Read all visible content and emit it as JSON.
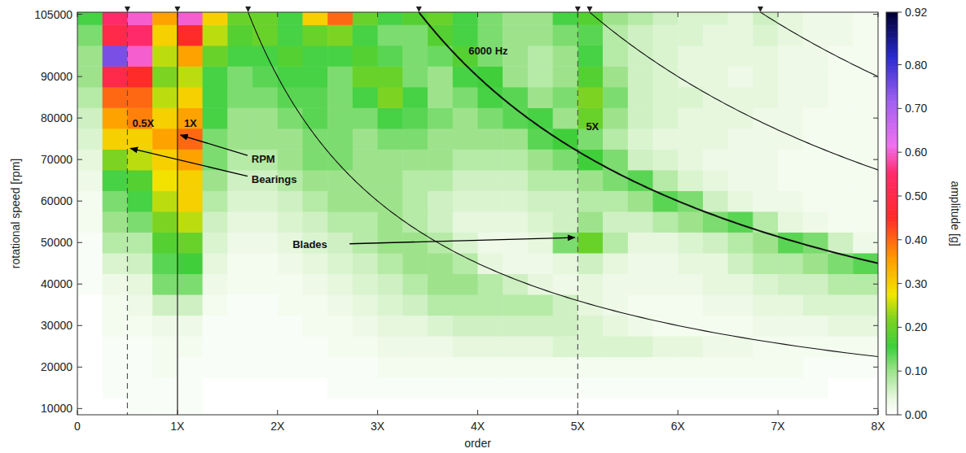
{
  "chart_data": {
    "type": "heatmap",
    "x_label": "order",
    "y_label": "rotational speed [rpm]",
    "xlim": [
      0,
      8
    ],
    "ylim": [
      8500,
      105500
    ],
    "xticks": [
      0,
      {
        "value": 1,
        "label": "1X"
      },
      {
        "value": 2,
        "label": "2X"
      },
      {
        "value": 3,
        "label": "3X"
      },
      {
        "value": 4,
        "label": "4X"
      },
      {
        "value": 5,
        "label": "5X"
      },
      {
        "value": 6,
        "label": "6X"
      },
      {
        "value": 7,
        "label": "7X"
      },
      {
        "value": 8,
        "label": "8X"
      }
    ],
    "yticks": [
      10000,
      20000,
      30000,
      40000,
      50000,
      60000,
      70000,
      80000,
      90000,
      105000
    ],
    "grid": false,
    "x_bins": [
      0,
      0.25,
      0.5,
      0.75,
      1,
      1.25,
      1.5,
      1.75,
      2,
      2.25,
      2.5,
      2.75,
      3,
      3.25,
      3.5,
      3.75,
      4,
      4.25,
      4.5,
      4.75,
      5,
      5.25,
      5.5,
      5.75,
      6,
      6.25,
      6.5,
      6.75,
      7,
      7.25,
      7.5,
      7.75,
      8
    ],
    "y_bins": [
      7500,
      12500,
      17500,
      22500,
      27500,
      32500,
      37500,
      42500,
      47500,
      52500,
      57500,
      62500,
      67500,
      72500,
      77500,
      82500,
      87500,
      92500,
      97500,
      102500,
      107500
    ],
    "cells": [
      [
        0,
        0,
        0.01,
        0.01,
        0.01,
        0,
        0,
        0,
        0,
        0,
        0,
        0,
        0,
        0,
        0,
        0,
        0,
        0,
        0,
        0,
        0,
        0,
        0,
        0,
        0,
        0,
        0,
        0,
        0,
        0,
        0,
        0
      ],
      [
        0,
        0.01,
        0.01,
        0.01,
        0.01,
        0,
        0,
        0,
        0,
        0,
        0.01,
        0.01,
        0.01,
        0.01,
        0.01,
        0.01,
        0.01,
        0.01,
        0.01,
        0.01,
        0.01,
        0.01,
        0.01,
        0.01,
        0.01,
        0.01,
        0.01,
        0.01,
        0.01,
        0.01,
        0,
        0
      ],
      [
        0,
        0.01,
        0.01,
        0.02,
        0.01,
        0.01,
        0.01,
        0.01,
        0.01,
        0.01,
        0.01,
        0.01,
        0.02,
        0.02,
        0.02,
        0.02,
        0.02,
        0.02,
        0.02,
        0.02,
        0.02,
        0.02,
        0.02,
        0.02,
        0.02,
        0.02,
        0.02,
        0.02,
        0.02,
        0.01,
        0.01,
        0.01
      ],
      [
        0,
        0.01,
        0.01,
        0.02,
        0.02,
        0.01,
        0.01,
        0.01,
        0.01,
        0.01,
        0.02,
        0.02,
        0.03,
        0.03,
        0.03,
        0.04,
        0.04,
        0.04,
        0.04,
        0.05,
        0.05,
        0.05,
        0.05,
        0.04,
        0.04,
        0.03,
        0.03,
        0.02,
        0.02,
        0.02,
        0.02,
        0.02
      ],
      [
        0,
        0.02,
        0.02,
        0.03,
        0.03,
        0.01,
        0.01,
        0.01,
        0.01,
        0.02,
        0.02,
        0.03,
        0.04,
        0.04,
        0.05,
        0.06,
        0.06,
        0.06,
        0.06,
        0.06,
        0.05,
        0.04,
        0.03,
        0.02,
        0.02,
        0.02,
        0.02,
        0.03,
        0.03,
        0.03,
        0.04,
        0.04
      ],
      [
        0,
        0.02,
        0.03,
        0.06,
        0.06,
        0.02,
        0.01,
        0.01,
        0.02,
        0.02,
        0.03,
        0.04,
        0.05,
        0.06,
        0.08,
        0.08,
        0.08,
        0.08,
        0.08,
        0.06,
        0.04,
        0.03,
        0.02,
        0.02,
        0.02,
        0.03,
        0.03,
        0.04,
        0.04,
        0.05,
        0.05,
        0.05
      ],
      [
        0.01,
        0.03,
        0.04,
        0.12,
        0.12,
        0.03,
        0.02,
        0.02,
        0.02,
        0.03,
        0.04,
        0.05,
        0.06,
        0.08,
        0.1,
        0.1,
        0.08,
        0.06,
        0.04,
        0.03,
        0.04,
        0.03,
        0.03,
        0.03,
        0.03,
        0.04,
        0.04,
        0.05,
        0.06,
        0.06,
        0.08,
        0.08
      ],
      [
        0.01,
        0.05,
        0.06,
        0.14,
        0.16,
        0.04,
        0.02,
        0.02,
        0.03,
        0.04,
        0.05,
        0.06,
        0.08,
        0.1,
        0.1,
        0.08,
        0.04,
        0.03,
        0.03,
        0.04,
        0.06,
        0.04,
        0.03,
        0.03,
        0.04,
        0.04,
        0.06,
        0.08,
        0.08,
        0.1,
        0.12,
        0.14
      ],
      [
        0.01,
        0.08,
        0.08,
        0.18,
        0.2,
        0.05,
        0.03,
        0.03,
        0.04,
        0.05,
        0.06,
        0.08,
        0.1,
        0.1,
        0.08,
        0.05,
        0.03,
        0.03,
        0.04,
        0.12,
        0.2,
        0.08,
        0.04,
        0.04,
        0.05,
        0.06,
        0.08,
        0.1,
        0.14,
        0.12,
        0.06,
        0.03
      ],
      [
        0.02,
        0.1,
        0.12,
        0.22,
        0.25,
        0.06,
        0.04,
        0.04,
        0.05,
        0.06,
        0.08,
        0.08,
        0.1,
        0.08,
        0.06,
        0.04,
        0.04,
        0.04,
        0.05,
        0.06,
        0.1,
        0.06,
        0.06,
        0.08,
        0.1,
        0.12,
        0.14,
        0.08,
        0.04,
        0.03,
        0.02,
        0.02
      ],
      [
        0.02,
        0.12,
        0.15,
        0.25,
        0.3,
        0.08,
        0.05,
        0.05,
        0.06,
        0.08,
        0.1,
        0.1,
        0.1,
        0.08,
        0.06,
        0.05,
        0.05,
        0.05,
        0.06,
        0.06,
        0.08,
        0.08,
        0.1,
        0.14,
        0.12,
        0.06,
        0.04,
        0.03,
        0.03,
        0.02,
        0.02,
        0.02
      ],
      [
        0.03,
        0.15,
        0.18,
        0.28,
        0.3,
        0.1,
        0.06,
        0.06,
        0.08,
        0.1,
        0.1,
        0.1,
        0.1,
        0.08,
        0.08,
        0.06,
        0.06,
        0.06,
        0.08,
        0.08,
        0.1,
        0.12,
        0.14,
        0.08,
        0.05,
        0.04,
        0.03,
        0.03,
        0.02,
        0.02,
        0.02,
        0.02
      ],
      [
        0.04,
        0.22,
        0.25,
        0.3,
        0.35,
        0.12,
        0.08,
        0.08,
        0.1,
        0.12,
        0.12,
        0.1,
        0.1,
        0.1,
        0.1,
        0.08,
        0.08,
        0.08,
        0.1,
        0.12,
        0.16,
        0.12,
        0.06,
        0.05,
        0.04,
        0.03,
        0.03,
        0.03,
        0.02,
        0.02,
        0.02,
        0.02
      ],
      [
        0.05,
        0.3,
        0.3,
        0.35,
        0.4,
        0.12,
        0.1,
        0.1,
        0.1,
        0.12,
        0.12,
        0.1,
        0.12,
        0.12,
        0.1,
        0.1,
        0.1,
        0.1,
        0.14,
        0.16,
        0.12,
        0.08,
        0.05,
        0.04,
        0.04,
        0.04,
        0.03,
        0.03,
        0.03,
        0.02,
        0.02,
        0.02
      ],
      [
        0.06,
        0.35,
        0.38,
        0.3,
        0.35,
        0.15,
        0.1,
        0.1,
        0.12,
        0.14,
        0.12,
        0.12,
        0.15,
        0.14,
        0.12,
        0.1,
        0.12,
        0.14,
        0.15,
        0.1,
        0.2,
        0.1,
        0.06,
        0.05,
        0.04,
        0.04,
        0.04,
        0.03,
        0.03,
        0.02,
        0.02,
        0.02
      ],
      [
        0.08,
        0.4,
        0.4,
        0.25,
        0.3,
        0.15,
        0.12,
        0.12,
        0.14,
        0.14,
        0.12,
        0.15,
        0.22,
        0.15,
        0.1,
        0.12,
        0.15,
        0.14,
        0.1,
        0.12,
        0.22,
        0.12,
        0.06,
        0.05,
        0.05,
        0.04,
        0.04,
        0.04,
        0.03,
        0.03,
        0.02,
        0.02
      ],
      [
        0.1,
        0.5,
        0.45,
        0.22,
        0.25,
        0.15,
        0.12,
        0.14,
        0.15,
        0.15,
        0.12,
        0.2,
        0.2,
        0.12,
        0.1,
        0.15,
        0.16,
        0.1,
        0.08,
        0.1,
        0.18,
        0.1,
        0.06,
        0.05,
        0.04,
        0.04,
        0.03,
        0.04,
        0.03,
        0.03,
        0.02,
        0.02
      ],
      [
        0.1,
        0.75,
        0.6,
        0.25,
        0.35,
        0.2,
        0.15,
        0.15,
        0.18,
        0.15,
        0.15,
        0.18,
        0.14,
        0.12,
        0.13,
        0.18,
        0.12,
        0.1,
        0.08,
        0.1,
        0.15,
        0.08,
        0.06,
        0.05,
        0.04,
        0.04,
        0.04,
        0.04,
        0.03,
        0.03,
        0.02,
        0.02
      ],
      [
        0.12,
        0.5,
        0.55,
        0.3,
        0.45,
        0.25,
        0.18,
        0.2,
        0.15,
        0.2,
        0.22,
        0.15,
        0.12,
        0.12,
        0.18,
        0.15,
        0.12,
        0.1,
        0.1,
        0.12,
        0.14,
        0.08,
        0.06,
        0.05,
        0.05,
        0.04,
        0.04,
        0.05,
        0.04,
        0.03,
        0.03,
        0.02
      ],
      [
        0.15,
        0.55,
        0.6,
        0.35,
        0.6,
        0.3,
        0.2,
        0.2,
        0.15,
        0.3,
        0.4,
        0.2,
        0.15,
        0.18,
        0.2,
        0.15,
        0.12,
        0.1,
        0.1,
        0.15,
        0.18,
        0.1,
        0.08,
        0.06,
        0.05,
        0.05,
        0.04,
        0.06,
        0.04,
        0.03,
        0.03,
        0.02
      ]
    ],
    "colorbar": {
      "label": "amplitude [g]",
      "range": [
        0,
        0.92
      ],
      "ticks": [
        {
          "value": 0,
          "label": "0.00"
        },
        {
          "value": 0.1,
          "label": "0.10"
        },
        {
          "value": 0.2,
          "label": "0.20"
        },
        {
          "value": 0.3,
          "label": "0.30"
        },
        {
          "value": 0.4,
          "label": "0.40"
        },
        {
          "value": 0.5,
          "label": "0.50"
        },
        {
          "value": 0.6,
          "label": "0.60"
        },
        {
          "value": 0.7,
          "label": "0.70"
        },
        {
          "value": 0.8,
          "label": "0.80"
        },
        0.92
      ]
    },
    "order_lines": [
      {
        "order": 0.5,
        "label": "0.5X",
        "line_style": "dashed"
      },
      {
        "order": 1,
        "label": "1X",
        "line_style": "solid"
      },
      {
        "order": 5,
        "label": "5X",
        "line_style": "dashed"
      }
    ],
    "frequency_lines": [
      {
        "frequency": 3000
      },
      {
        "frequency": 6000,
        "label": "6000 Hz"
      },
      {
        "frequency": 9000
      },
      {
        "frequency": 12000
      }
    ],
    "annotations": [
      "RPM",
      "Bearings",
      "Blades"
    ]
  }
}
